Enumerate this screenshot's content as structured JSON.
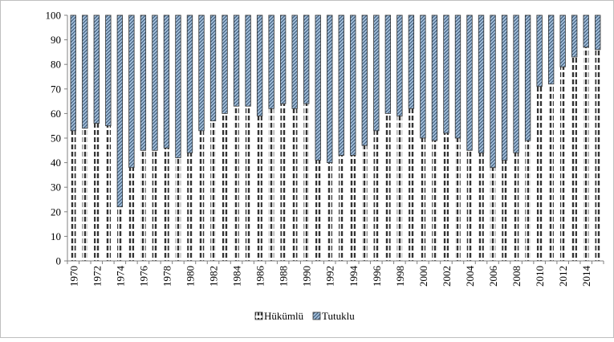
{
  "chart_data": {
    "type": "bar",
    "stacked": true,
    "percent_stacked": true,
    "categories": [
      "1970",
      "1971",
      "1972",
      "1973",
      "1974",
      "1975",
      "1976",
      "1977",
      "1978",
      "1979",
      "1980",
      "1981",
      "1982",
      "1983",
      "1984",
      "1985",
      "1986",
      "1987",
      "1988",
      "1989",
      "1990",
      "1991",
      "1992",
      "1993",
      "1994",
      "1995",
      "1996",
      "1997",
      "1998",
      "1999",
      "2000",
      "2001",
      "2002",
      "2003",
      "2004",
      "2005",
      "2006",
      "2007",
      "2008",
      "2009",
      "2010",
      "2011",
      "2012",
      "2013",
      "2014",
      "2015"
    ],
    "x_tick_labels": [
      "1970",
      "1972",
      "1974",
      "1976",
      "1978",
      "1980",
      "1982",
      "1984",
      "1986",
      "1988",
      "1990",
      "1992",
      "1994",
      "1996",
      "1998",
      "2000",
      "2002",
      "2004",
      "2006",
      "2008",
      "2010",
      "2012",
      "2014"
    ],
    "series": [
      {
        "name": "Hükümlü",
        "pattern": "dashed-vertical",
        "color": "#333333",
        "values": [
          53,
          54,
          56,
          55,
          22,
          38,
          45,
          45,
          46,
          42,
          44,
          53,
          57,
          60,
          63,
          63,
          59,
          62,
          64,
          62,
          64,
          41,
          40,
          43,
          43,
          47,
          53,
          60,
          59,
          62,
          50,
          49,
          52,
          50,
          45,
          44,
          38,
          41,
          44,
          49,
          71,
          72,
          79,
          83,
          87,
          86
        ]
      },
      {
        "name": "Tutuklu",
        "pattern": "diagonal-hatch",
        "color": "#4a6f8f",
        "values": [
          47,
          46,
          44,
          45,
          78,
          62,
          55,
          55,
          54,
          58,
          56,
          47,
          43,
          40,
          37,
          37,
          41,
          38,
          36,
          38,
          36,
          59,
          60,
          57,
          57,
          53,
          47,
          40,
          41,
          38,
          50,
          51,
          48,
          50,
          55,
          56,
          62,
          59,
          56,
          51,
          29,
          28,
          21,
          17,
          13,
          14
        ]
      }
    ],
    "ylim": [
      0,
      100
    ],
    "y_ticks": [
      0,
      10,
      20,
      30,
      40,
      50,
      60,
      70,
      80,
      90,
      100
    ],
    "grid": false,
    "legend_position": "bottom-center",
    "title": "",
    "xlabel": "",
    "ylabel": ""
  }
}
